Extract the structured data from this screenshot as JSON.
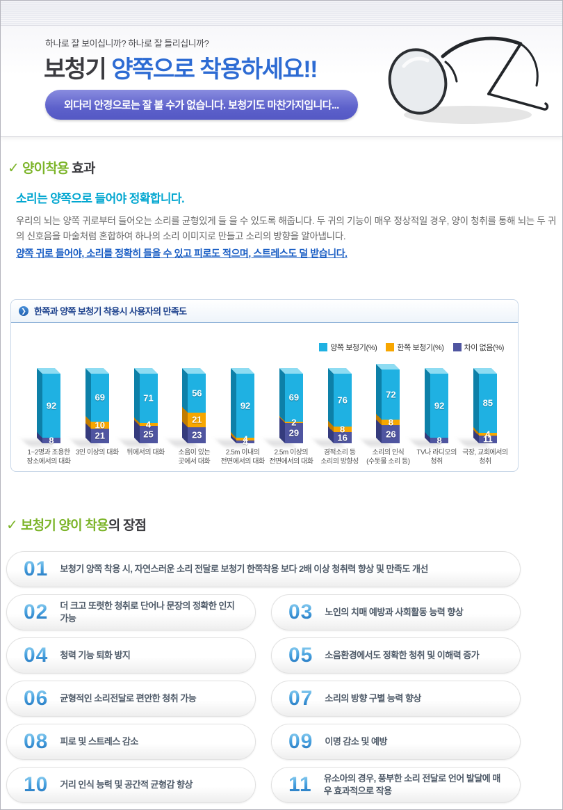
{
  "hero": {
    "question": "하나로 잘 보이십니까?  하나로 잘 들리십니까?",
    "title_dark": "보청기",
    "title_blue": " 양쪽으로 착용하세요!!",
    "pill": "외다리 안경으로는 잘 볼 수가 없습니다. 보청기도 마찬가지입니다..."
  },
  "effect": {
    "check": "✓",
    "heading_green": "양이착용",
    "heading_dark": " 효과",
    "subtitle": "소리는 양쪽으로 들어야 정확합니다.",
    "body": "우리의 뇌는 양쪽 귀로부터 들어오는 소리를 균형있게 들 을 수 있도록 해줍니다. 두 귀의 기능이 매우 정상적일 경우, 양이 청취를 통해 뇌는 두 귀의 신호음을 마술처럼 혼합하여 하나의 소리 이미지로 만들고 소리의 방향을 알아냅니다.",
    "emphasis": "양쪽 귀로 들어야, 소리를 정확히 들을 수 있고 피로도 적으며, 스트레스도 덜 받습니다."
  },
  "chart_data": {
    "type": "bar",
    "stacked": true,
    "title": "한쪽과 양쪽 보청기 착용시 사용자의 만족도",
    "unit": "%",
    "ylim": [
      0,
      100
    ],
    "legend_position": "top-right",
    "categories": [
      "1~2명과 조용한\n장소에서의 대화",
      "3인 이상의 대화",
      "뒤에서의 대화",
      "소음이 있는\n곳에서 대화",
      "2.5m 이내의\n전면에서의 대화",
      "2.5m 이상의\n전면에서의 대화",
      "경적소리 등\n소리의 방향성",
      "소리의 인식\n(수돗물 소리 등)",
      "TV나 라디오의\n청취",
      "극장, 교회에서의\n청취"
    ],
    "series": [
      {
        "name": "양쪽 보청기(%)",
        "color": "#1fb1e2",
        "side_color": "#0d80a8",
        "top_color": "#8edcf2",
        "values": [
          92,
          69,
          71,
          56,
          92,
          69,
          76,
          72,
          92,
          85
        ]
      },
      {
        "name": "한쪽 보청기(%)",
        "color": "#f7a600",
        "side_color": "#c17c00",
        "values": [
          0,
          10,
          4,
          21,
          4,
          2,
          8,
          8,
          0,
          4
        ]
      },
      {
        "name": "차이 없음(%)",
        "color": "#4f55a0",
        "side_color": "#353b7d",
        "values": [
          8,
          21,
          25,
          23,
          4,
          29,
          16,
          26,
          8,
          11
        ]
      }
    ]
  },
  "benefits": {
    "check": "✓",
    "heading_green": "보청기 양이 착용",
    "heading_dark": "의 장점",
    "items": [
      {
        "num": "01",
        "text": "보청기 양쪽 착용 시, 자연스러운 소리 전달로 보청기 한쪽착용 보다 2배 이상 청취력 향상 및 만족도 개선"
      },
      {
        "num": "02",
        "text": "더 크고 또렷한 청취로 단어나 문장의 정확한 인지 가능"
      },
      {
        "num": "03",
        "text": "노인의 치매 예방과 사회활동 능력 향상"
      },
      {
        "num": "04",
        "text": "청력 기능 퇴화 방지"
      },
      {
        "num": "05",
        "text": "소음환경에서도 정확한 청취 및 이해력 증가"
      },
      {
        "num": "06",
        "text": "균형적인 소리전달로 편안한 청취 가능"
      },
      {
        "num": "07",
        "text": "소리의 방향 구별 능력 향상"
      },
      {
        "num": "08",
        "text": "피로 및 스트레스 감소"
      },
      {
        "num": "09",
        "text": "이명 감소 및 예방"
      },
      {
        "num": "10",
        "text": "거리 인식 능력 및 공간적 균형감 향상"
      },
      {
        "num": "11",
        "text": "유소아의 경우, 풍부한 소리 전달로 언어 발달에 매우 효과적으로 작용"
      }
    ]
  }
}
